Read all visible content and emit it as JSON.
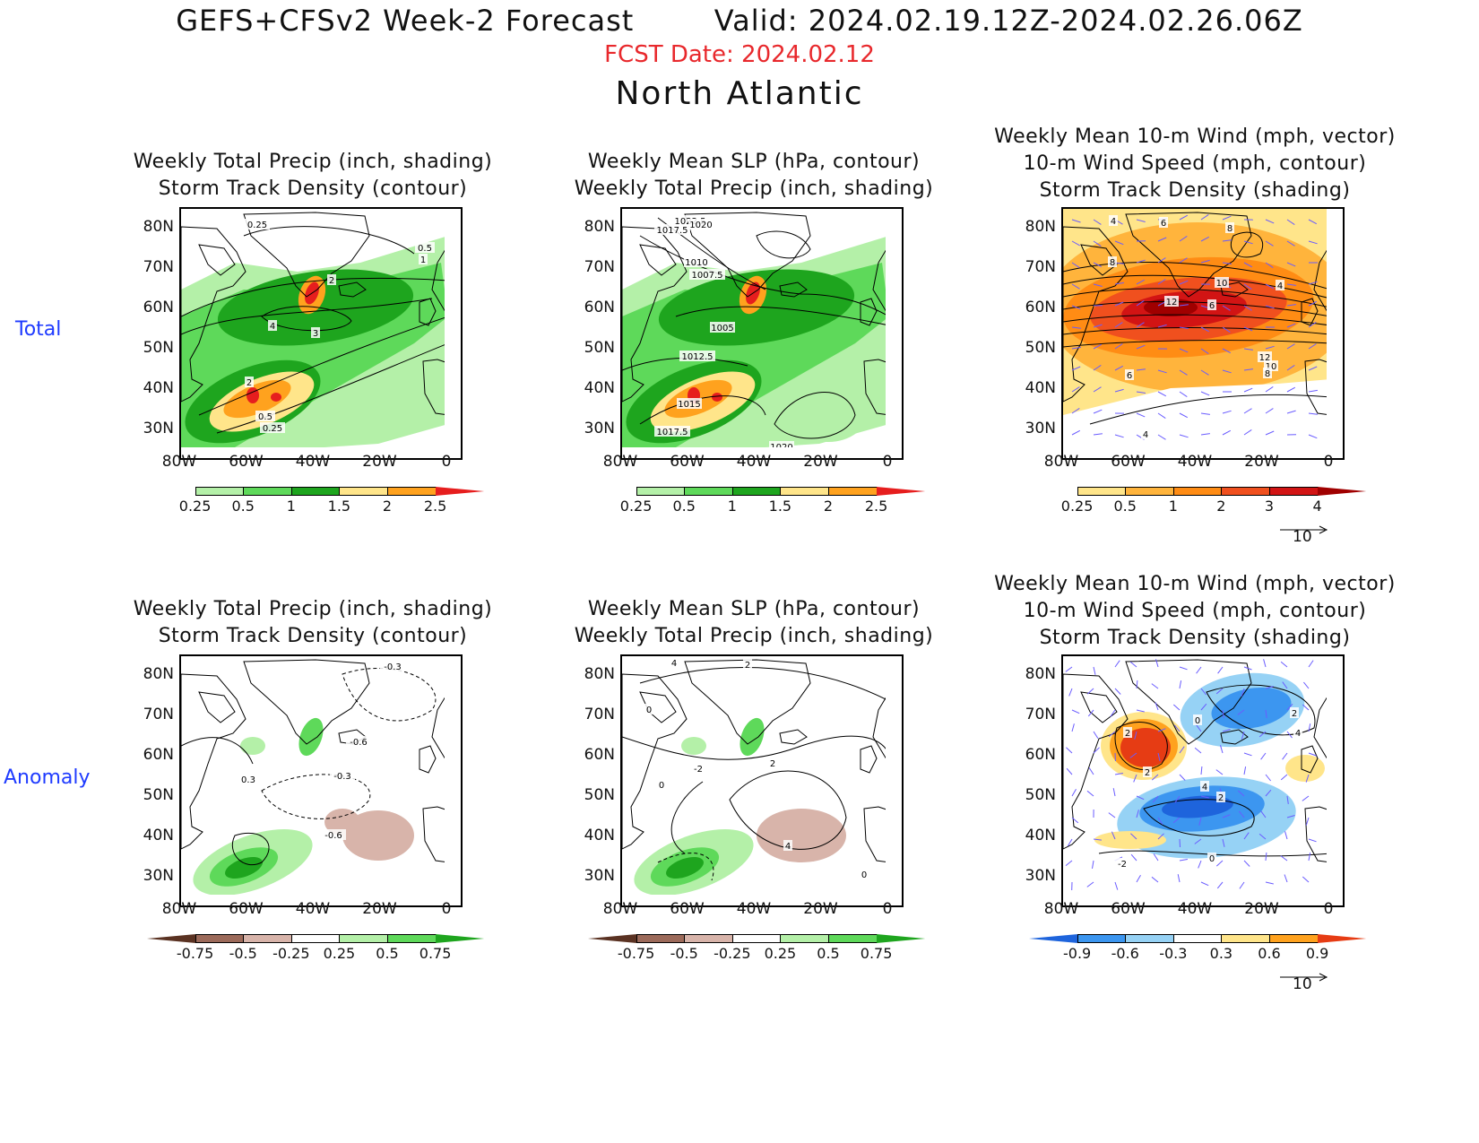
{
  "header": {
    "title_left": "GEFS+CFSv2 Week-2 Forecast",
    "title_right": "Valid: 2024.02.19.12Z-2024.02.26.06Z",
    "fcst_date": "FCST Date: 2024.02.12",
    "region": "North Atlantic"
  },
  "rows": {
    "total": "Total",
    "anomaly": "Anomaly"
  },
  "axes": {
    "lat_labels": [
      "80N",
      "70N",
      "60N",
      "50N",
      "40N",
      "30N"
    ],
    "lon_labels": [
      "80W",
      "60W",
      "40W",
      "20W",
      "0"
    ]
  },
  "panels": {
    "total_precip": {
      "title": "Weekly Total Precip (inch, shading)\nStorm Track Density (contour)"
    },
    "total_slp": {
      "title": "Weekly Mean SLP (hPa, contour)\nWeekly Total Precip (inch, shading)"
    },
    "total_wind": {
      "title": "Weekly Mean 10-m Wind (mph, vector)\n10-m Wind Speed (mph, contour)\nStorm Track Density (shading)"
    },
    "anom_precip": {
      "title": "Weekly Total Precip (inch, shading)\nStorm Track Density (contour)"
    },
    "anom_slp": {
      "title": "Weekly Mean SLP (hPa, contour)\nWeekly Total Precip (inch, shading)"
    },
    "anom_wind": {
      "title": "Weekly Mean 10-m Wind (mph, vector)\n10-m Wind Speed (mph, contour)\nStorm Track Density (shading)"
    }
  },
  "colorbars": {
    "precip_total": {
      "ticks": [
        "0.25",
        "0.5",
        "1",
        "1.5",
        "2",
        "2.5"
      ],
      "colors": [
        "#ffffff",
        "#b4f0a8",
        "#5ed95a",
        "#1ea51e",
        "#ffe58a",
        "#ffa21e",
        "#e61e1e"
      ]
    },
    "density_total": {
      "ticks": [
        "0.25",
        "0.5",
        "1",
        "2",
        "3",
        "4"
      ],
      "colors": [
        "#ffffff",
        "#ffe58a",
        "#ffb43c",
        "#ff8c14",
        "#f0501e",
        "#d21414",
        "#a00000"
      ]
    },
    "precip_anom": {
      "ticks": [
        "-0.75",
        "-0.5",
        "-0.25",
        "0.25",
        "0.5",
        "0.75"
      ],
      "colors": [
        "#5a3222",
        "#9c6a5a",
        "#d8b4aa",
        "#ffffff",
        "#b4f0a8",
        "#5ed95a",
        "#1ea51e"
      ]
    },
    "density_anom": {
      "ticks": [
        "-0.9",
        "-0.6",
        "-0.3",
        "0.3",
        "0.6",
        "0.9"
      ],
      "colors": [
        "#1e64dc",
        "#3c96f0",
        "#96d2f5",
        "#ffffff",
        "#ffe58a",
        "#ffa21e",
        "#e63c14"
      ]
    }
  },
  "vector_ref": "10",
  "contour_labels": {
    "total_precip": [
      "0.25",
      "0.5",
      "1",
      "2",
      "4",
      "3",
      "2",
      "0.5",
      "0.25"
    ],
    "total_slp": [
      "1022.5",
      "1020",
      "1017.5",
      "1010",
      "1007.5",
      "1005",
      "1012.5",
      "1015",
      "1017.5",
      "1020"
    ],
    "total_wind": [
      "4",
      "6",
      "8",
      "8",
      "10",
      "4",
      "12",
      "6",
      "12",
      "10",
      "8",
      "6",
      "4"
    ],
    "anom_precip": [
      "-0.3",
      "-0.6",
      "0.3",
      "-0.3",
      "-0.6"
    ],
    "anom_slp": [
      "4",
      "2",
      "0",
      "-2",
      "0",
      "2",
      "4",
      "0"
    ],
    "anom_wind": [
      "2",
      "0",
      "2",
      "4",
      "2",
      "4",
      "2",
      "0",
      "-2"
    ]
  }
}
